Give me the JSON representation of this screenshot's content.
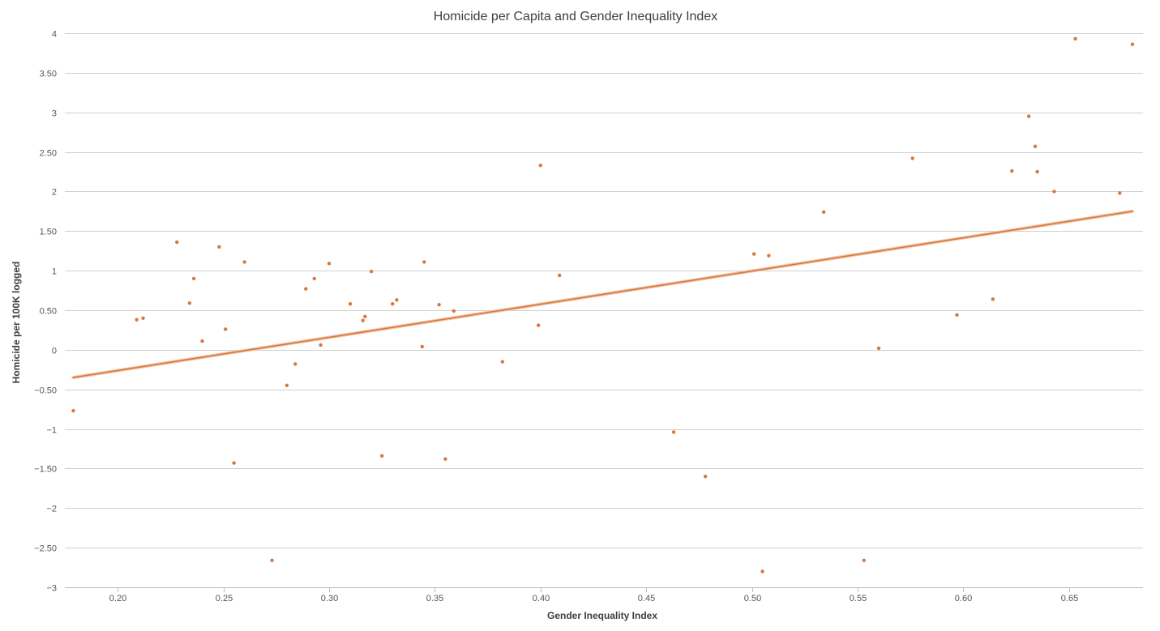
{
  "chart_data": {
    "type": "scatter",
    "title": "Homicide per Capita and Gender Inequality Index",
    "xlabel": "Gender Inequality Index",
    "ylabel": "Homicide per 100K logged",
    "xlim": [
      0.175,
      0.685
    ],
    "ylim": [
      -3,
      4
    ],
    "x_ticks": [
      0.2,
      0.25,
      0.3,
      0.35,
      0.4,
      0.45,
      0.5,
      0.55,
      0.6,
      0.65
    ],
    "x_tick_labels": [
      "0.20",
      "0.25",
      "0.30",
      "0.35",
      "0.40",
      "0.45",
      "0.50",
      "0.55",
      "0.60",
      "0.65"
    ],
    "y_ticks": [
      4,
      3.5,
      3,
      2.5,
      2,
      1.5,
      1,
      0.5,
      0,
      -0.5,
      -1,
      -1.5,
      -2,
      -2.5,
      -3
    ],
    "y_tick_labels": [
      "4",
      "3.50",
      "3",
      "2.50",
      "2",
      "1.50",
      "1",
      "0.50",
      "0",
      "−0.50",
      "−1",
      "−1.50",
      "−2",
      "−2.50",
      "−3"
    ],
    "grid": true,
    "colors": {
      "point": "#d9773a",
      "trend": "#d9773a",
      "trend_halo": "#f0c5a6"
    },
    "series": [
      {
        "values": [
          [
            0.179,
            -0.77
          ],
          [
            0.209,
            0.38
          ],
          [
            0.212,
            0.4
          ],
          [
            0.228,
            1.36
          ],
          [
            0.234,
            0.59
          ],
          [
            0.236,
            0.9
          ],
          [
            0.24,
            0.11
          ],
          [
            0.248,
            1.3
          ],
          [
            0.251,
            0.26
          ],
          [
            0.255,
            -1.43
          ],
          [
            0.26,
            1.11
          ],
          [
            0.273,
            -2.66
          ],
          [
            0.28,
            -0.45
          ],
          [
            0.284,
            -0.18
          ],
          [
            0.289,
            0.77
          ],
          [
            0.293,
            0.9
          ],
          [
            0.296,
            0.06
          ],
          [
            0.3,
            1.09
          ],
          [
            0.31,
            0.58
          ],
          [
            0.316,
            0.37
          ],
          [
            0.317,
            0.42
          ],
          [
            0.32,
            0.99
          ],
          [
            0.325,
            -1.34
          ],
          [
            0.33,
            0.58
          ],
          [
            0.332,
            0.63
          ],
          [
            0.344,
            0.04
          ],
          [
            0.345,
            1.11
          ],
          [
            0.352,
            0.57
          ],
          [
            0.355,
            -1.38
          ],
          [
            0.359,
            0.49
          ],
          [
            0.382,
            -0.15
          ],
          [
            0.399,
            0.31
          ],
          [
            0.4,
            2.33
          ],
          [
            0.409,
            0.94
          ],
          [
            0.463,
            -1.04
          ],
          [
            0.478,
            -1.6
          ],
          [
            0.501,
            1.21
          ],
          [
            0.505,
            -2.8
          ],
          [
            0.508,
            1.19
          ],
          [
            0.534,
            1.74
          ],
          [
            0.553,
            -2.66
          ],
          [
            0.56,
            0.02
          ],
          [
            0.576,
            2.42
          ],
          [
            0.597,
            0.44
          ],
          [
            0.614,
            0.64
          ],
          [
            0.623,
            2.26
          ],
          [
            0.631,
            2.95
          ],
          [
            0.634,
            2.57
          ],
          [
            0.635,
            2.25
          ],
          [
            0.643,
            2.0
          ],
          [
            0.653,
            3.93
          ],
          [
            0.674,
            1.98
          ],
          [
            0.68,
            3.86
          ]
        ]
      }
    ],
    "trendline": {
      "x": [
        0.179,
        0.68
      ],
      "y": [
        -0.35,
        1.75
      ]
    }
  }
}
